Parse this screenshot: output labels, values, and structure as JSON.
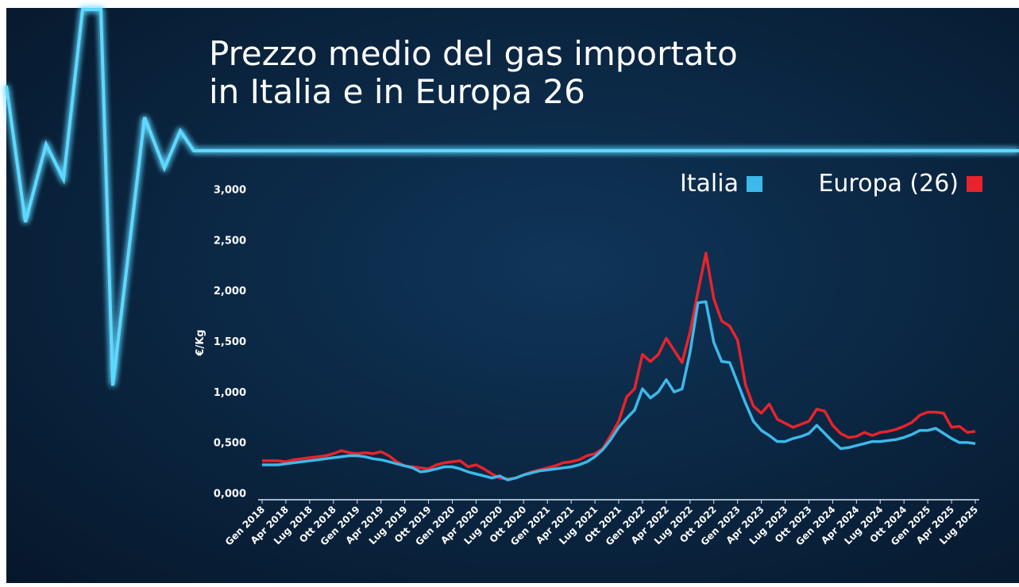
{
  "chart_data": {
    "type": "line",
    "title": [
      "Prezzo medio del gas importato",
      "in Italia e in Europa 26"
    ],
    "y_label": "€/Kg",
    "categories": [
      "Gen 2018",
      null,
      null,
      "Apr 2018",
      null,
      null,
      "Lug 2018",
      null,
      null,
      "Ott 2018",
      null,
      null,
      "Gen 2019",
      null,
      null,
      "Apr 2019",
      null,
      null,
      "Lug 2019",
      null,
      null,
      "Ott 2019",
      null,
      null,
      "Gen 2020",
      null,
      null,
      "Apr 2020",
      null,
      null,
      "Lug 2020",
      null,
      null,
      "Ott 2020",
      null,
      null,
      "Gen 2021",
      null,
      null,
      "Apr 2021",
      null,
      null,
      "Lug 2021",
      null,
      null,
      "Ott 2021",
      null,
      null,
      "Gen 2022",
      null,
      null,
      "Apr 2022",
      null,
      null,
      "Lug 2022",
      null,
      null,
      "Ott 2022",
      null,
      null,
      "Gen 2023",
      null,
      null,
      "Apr 2023",
      null,
      null,
      "Lug 2023",
      null,
      null,
      "Ott 2023",
      null,
      null,
      "Gen 2024",
      null,
      null,
      "Apr 2024",
      null,
      null,
      "Lug 2024",
      null,
      null,
      "Ott 2024",
      null,
      null,
      "Gen 2025",
      null,
      null,
      "Apr 2025",
      null,
      null,
      "Lug 2025"
    ],
    "series": [
      {
        "name": "Italia",
        "color": "#3cb9ea",
        "values": [
          0.29,
          0.29,
          0.29,
          0.3,
          0.31,
          0.32,
          0.33,
          0.34,
          0.35,
          0.36,
          0.37,
          0.38,
          0.38,
          0.37,
          0.35,
          0.34,
          0.32,
          0.3,
          0.28,
          0.26,
          0.22,
          0.23,
          0.25,
          0.27,
          0.27,
          0.25,
          0.22,
          0.2,
          0.18,
          0.16,
          0.18,
          0.14,
          0.16,
          0.19,
          0.21,
          0.23,
          0.24,
          0.25,
          0.26,
          0.27,
          0.29,
          0.32,
          0.37,
          0.44,
          0.54,
          0.66,
          0.75,
          0.83,
          1.04,
          0.95,
          1.01,
          1.13,
          1.01,
          1.04,
          1.4,
          1.89,
          1.9,
          1.5,
          1.31,
          1.3,
          1.1,
          0.9,
          0.72,
          0.63,
          0.58,
          0.52,
          0.52,
          0.55,
          0.57,
          0.6,
          0.68,
          0.6,
          0.52,
          0.45,
          0.46,
          0.48,
          0.5,
          0.52,
          0.52,
          0.53,
          0.54,
          0.56,
          0.59,
          0.63,
          0.63,
          0.65,
          0.6,
          0.55,
          0.51,
          0.51,
          0.5
        ]
      },
      {
        "name": "Europa (26)",
        "color": "#e8232b",
        "values": [
          0.33,
          0.33,
          0.33,
          0.32,
          0.34,
          0.35,
          0.36,
          0.37,
          0.38,
          0.4,
          0.43,
          0.41,
          0.4,
          0.41,
          0.4,
          0.42,
          0.38,
          0.32,
          0.28,
          0.27,
          0.26,
          0.25,
          0.29,
          0.31,
          0.32,
          0.33,
          0.27,
          0.29,
          0.25,
          0.2,
          0.16,
          0.15,
          0.16,
          0.19,
          0.22,
          0.24,
          0.26,
          0.28,
          0.31,
          0.32,
          0.34,
          0.38,
          0.4,
          0.45,
          0.58,
          0.72,
          0.96,
          1.04,
          1.38,
          1.31,
          1.38,
          1.54,
          1.42,
          1.3,
          1.6,
          2.0,
          2.38,
          1.93,
          1.71,
          1.66,
          1.52,
          1.08,
          0.87,
          0.8,
          0.89,
          0.74,
          0.7,
          0.66,
          0.69,
          0.72,
          0.84,
          0.82,
          0.68,
          0.6,
          0.56,
          0.57,
          0.61,
          0.58,
          0.61,
          0.62,
          0.64,
          0.67,
          0.71,
          0.78,
          0.81,
          0.81,
          0.8,
          0.66,
          0.67,
          0.61,
          0.62
        ]
      }
    ],
    "ylim": [
      0,
      3
    ],
    "yticks": [
      {
        "value": 0,
        "label": "0,000"
      },
      {
        "value": 0.5,
        "label": "0,500"
      },
      {
        "value": 1,
        "label": "1,000"
      },
      {
        "value": 1.5,
        "label": "1,500"
      },
      {
        "value": 2,
        "label": "2,000"
      },
      {
        "value": 2.5,
        "label": "2,500"
      },
      {
        "value": 3,
        "label": "3,000"
      }
    ],
    "legend": "top-right"
  }
}
